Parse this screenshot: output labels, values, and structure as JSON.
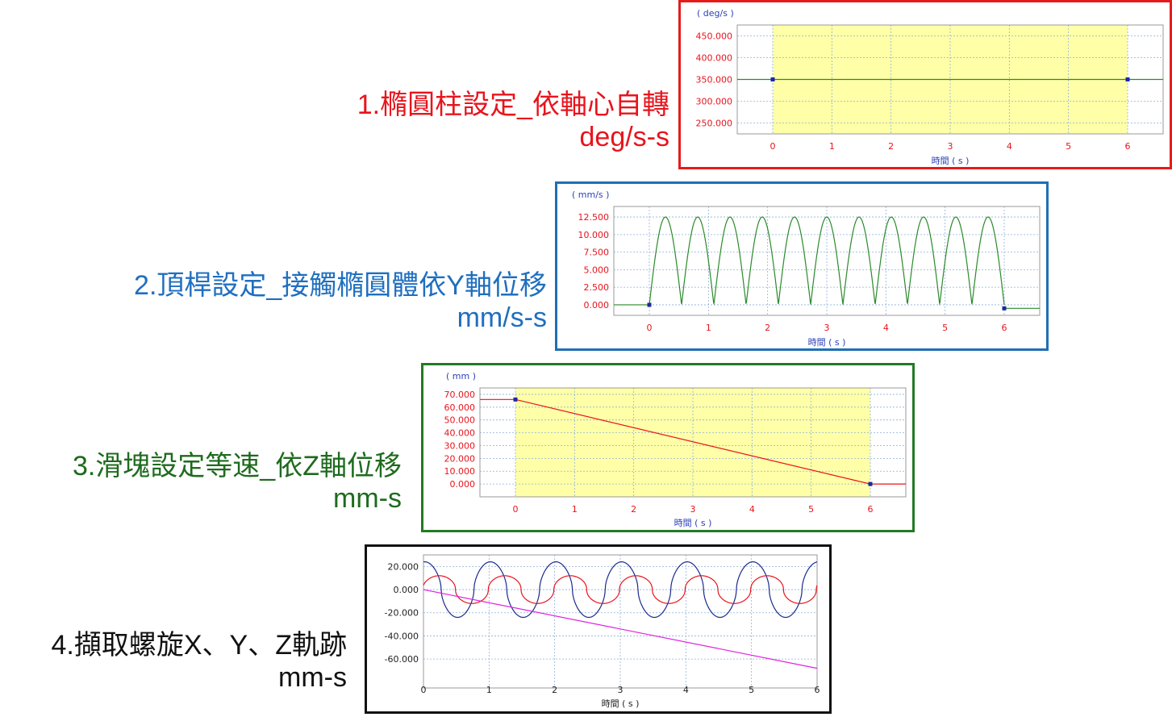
{
  "colors": {
    "red": "#e8141c",
    "blue": "#1f6fbf",
    "green": "#1e6b1e",
    "black": "#111111",
    "tick_red": "#e8141c",
    "tick_blue": "#2b40b8",
    "highlight": "#ffffa8",
    "grid": "#8fb0d8",
    "frame_red": "#e51b1b",
    "frame_blue": "#1f6fb4",
    "frame_green": "#237a23",
    "frame_black": "#111111"
  },
  "panels": [
    {
      "title": "1.橢圓柱設定_依軸心自轉",
      "unit": "deg/s-s"
    },
    {
      "title": "2.頂桿設定_接觸橢圓體依Y軸位移",
      "unit": "mm/s-s"
    },
    {
      "title": "3.滑塊設定等速_依Z軸位移",
      "unit": "mm-s"
    },
    {
      "title": "4.擷取螺旋X、Y、Z軌跡",
      "unit": "mm-s"
    }
  ],
  "chart_data": [
    {
      "type": "line",
      "ylabel": "( deg/s )",
      "xlabel": "時間 ( s )",
      "xlim": [
        -0.6,
        6.6
      ],
      "ylim": [
        225,
        475
      ],
      "x_ticks": [
        "0",
        "1",
        "2",
        "3",
        "4",
        "5",
        "6"
      ],
      "y_ticks": [
        "450.000",
        "400.000",
        "350.000",
        "300.000",
        "250.000"
      ],
      "y_tick_values": [
        450,
        400,
        350,
        300,
        250
      ],
      "highlight_x": [
        0,
        6
      ],
      "series": [
        {
          "x": [
            -0.6,
            6.6
          ],
          "y": [
            350,
            350
          ],
          "color": "#2a8a2a"
        }
      ],
      "markers": [
        {
          "x": 0,
          "y": 350
        },
        {
          "x": 6,
          "y": 350
        }
      ]
    },
    {
      "type": "line",
      "ylabel": "( mm/s )",
      "xlabel": "時間 ( s )",
      "xlim": [
        -0.6,
        6.6
      ],
      "ylim": [
        -1.5,
        14
      ],
      "x_ticks": [
        "0",
        "1",
        "2",
        "3",
        "4",
        "5",
        "6"
      ],
      "y_ticks": [
        "12.500",
        "10.000",
        "7.500",
        "5.000",
        "2.500",
        "0.000"
      ],
      "y_tick_values": [
        12.5,
        10,
        7.5,
        5,
        2.5,
        0
      ],
      "series": [
        {
          "x": [
            -0.6,
            0
          ],
          "y": [
            0,
            0
          ],
          "color": "#2a8a2a"
        },
        {
          "function": "abs_sine",
          "amplitude": 12.5,
          "x_range": [
            0,
            6
          ],
          "half_periods": 11,
          "color": "#2a8a2a"
        },
        {
          "x": [
            6,
            6.6
          ],
          "y": [
            -0.5,
            -0.5
          ],
          "color": "#2a8a2a"
        }
      ],
      "markers": [
        {
          "x": 0,
          "y": 0
        },
        {
          "x": 6,
          "y": -0.5
        }
      ]
    },
    {
      "type": "line",
      "ylabel": "( mm )",
      "xlabel": "時間 ( s )",
      "xlim": [
        -0.6,
        6.6
      ],
      "ylim": [
        -10,
        75
      ],
      "x_ticks": [
        "0",
        "1",
        "2",
        "3",
        "4",
        "5",
        "6"
      ],
      "y_ticks": [
        "70.000",
        "60.000",
        "50.000",
        "40.000",
        "30.000",
        "20.000",
        "10.000",
        "0.000"
      ],
      "y_tick_values": [
        70,
        60,
        50,
        40,
        30,
        20,
        10,
        0
      ],
      "highlight_x": [
        0,
        6
      ],
      "series": [
        {
          "x": [
            -0.6,
            0,
            6,
            6.6
          ],
          "y": [
            66,
            66,
            0,
            0
          ],
          "color": "#e8141c"
        }
      ],
      "markers": [
        {
          "x": 0,
          "y": 66
        },
        {
          "x": 6,
          "y": 0
        }
      ]
    },
    {
      "type": "line",
      "ylabel": "",
      "xlabel": "時間 ( s )",
      "xlim": [
        0,
        6
      ],
      "ylim": [
        -85,
        30
      ],
      "x_ticks": [
        "0",
        "1",
        "2",
        "3",
        "4",
        "5",
        "6"
      ],
      "y_ticks": [
        "20.000",
        "0.000",
        "-20.000",
        "-40.000",
        "-60.000"
      ],
      "y_tick_values": [
        20,
        0,
        -20,
        -40,
        -60
      ],
      "series": [
        {
          "function": "blue_wave",
          "period": 1,
          "color": "#1b2a8c"
        },
        {
          "function": "red_wave",
          "period": 1,
          "color": "#e8141c"
        },
        {
          "x": [
            0,
            6
          ],
          "y": [
            0,
            -68
          ],
          "color": "#e020e0"
        }
      ]
    }
  ]
}
